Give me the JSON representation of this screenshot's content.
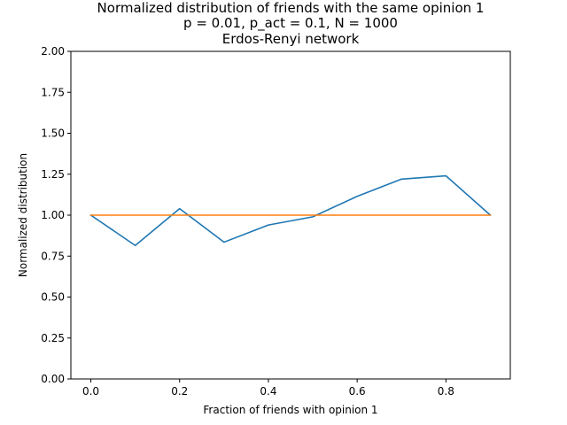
{
  "chart_data": {
    "type": "line",
    "title_lines": [
      "Normalized distribution of friends with the same opinion 1",
      "p = 0.01, p_act = 0.1, N = 1000",
      "Erdos-Renyi network"
    ],
    "xlabel": "Fraction of friends with opinion 1",
    "ylabel": "Normalized distribution",
    "xlim": [
      -0.045,
      0.945
    ],
    "ylim": [
      0.0,
      2.0
    ],
    "x_ticks": [
      "0.0",
      "0.2",
      "0.4",
      "0.6",
      "0.8"
    ],
    "y_ticks": [
      "0.00",
      "0.25",
      "0.50",
      "0.75",
      "1.00",
      "1.25",
      "1.50",
      "1.75",
      "2.00"
    ],
    "grid": false,
    "legend": "none",
    "series": [
      {
        "color": "#1f77b4",
        "x": [
          0.0,
          0.1,
          0.2,
          0.3,
          0.4,
          0.5,
          0.6,
          0.7,
          0.8,
          0.9
        ],
        "y": [
          1.0,
          0.815,
          1.04,
          0.835,
          0.94,
          0.99,
          1.115,
          1.22,
          1.24,
          1.0
        ]
      },
      {
        "color": "#ff7f0e",
        "x": [
          0.0,
          0.1,
          0.2,
          0.3,
          0.4,
          0.5,
          0.6,
          0.7,
          0.8,
          0.9
        ],
        "y": [
          1.0,
          1.0,
          1.0,
          1.0,
          1.0,
          1.0,
          1.0,
          1.0,
          1.0,
          1.0
        ]
      }
    ]
  }
}
